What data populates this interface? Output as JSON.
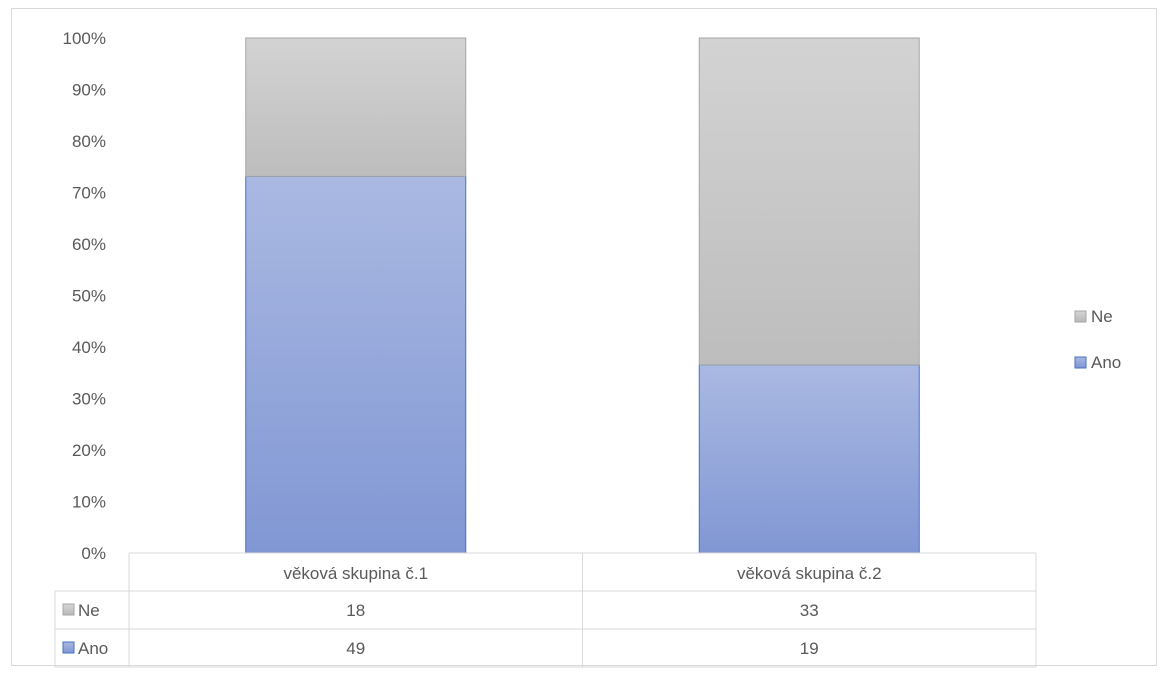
{
  "chart_data": {
    "type": "bar",
    "stacked": "percent",
    "categories": [
      "věková skupina č.1",
      "věková skupina č.2"
    ],
    "series": [
      {
        "name": "Ano",
        "values": [
          49,
          19
        ],
        "color": "#8fa3d8"
      },
      {
        "name": "Ne",
        "values": [
          18,
          33
        ],
        "color": "#c4c4c4"
      }
    ],
    "yticks": [
      "0%",
      "10%",
      "20%",
      "30%",
      "40%",
      "50%",
      "60%",
      "70%",
      "80%",
      "90%",
      "100%"
    ],
    "ylim": [
      0,
      100
    ],
    "grid": false,
    "legend": {
      "position": "right",
      "items": [
        "Ne",
        "Ano"
      ]
    },
    "data_table": {
      "rows": [
        {
          "label": "Ne",
          "values": [
            "18",
            "33"
          ]
        },
        {
          "label": "Ano",
          "values": [
            "49",
            "19"
          ]
        }
      ]
    }
  }
}
